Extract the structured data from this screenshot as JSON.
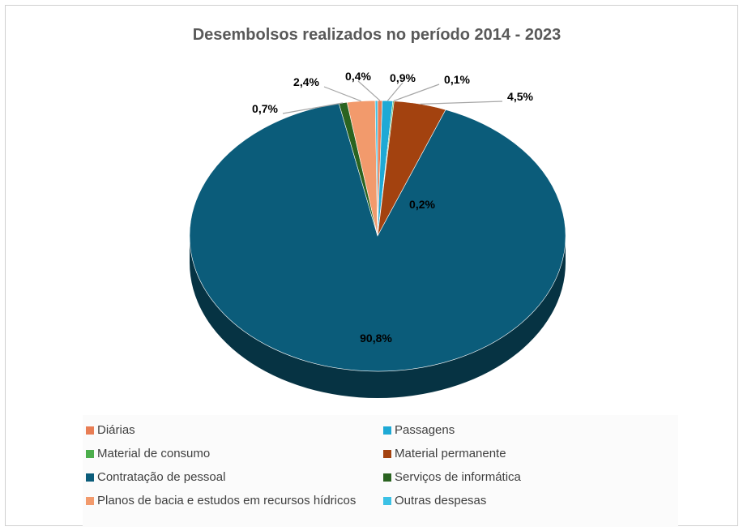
{
  "chart_data": {
    "type": "pie",
    "title": "Desembolsos realizados no período 2014 - 2023",
    "legend_position": "bottom",
    "slices": [
      {
        "name": "Diárias",
        "value": 0.4,
        "label": "0,4%",
        "color": "#e87d54"
      },
      {
        "name": "Passagens",
        "value": 0.9,
        "label": "0,9%",
        "color": "#1ea9d5"
      },
      {
        "name": "Material de consumo",
        "value": 0.1,
        "label": "0,1%",
        "color": "#4cae4c"
      },
      {
        "name": "Material permanente",
        "value": 4.5,
        "label": "4,5%",
        "color": "#a3420f"
      },
      {
        "name": "Contratação de pessoal",
        "value": 90.8,
        "label": "90,8%",
        "color": "#0b5c7a"
      },
      {
        "name": "Serviços de informática",
        "value": 0.7,
        "label": "0,7%",
        "color": "#2a6320"
      },
      {
        "name": "Planos de bacia e estudos em recursos hídricos",
        "value": 2.4,
        "label": "2,4%",
        "color": "#f29a6c"
      },
      {
        "name": "Outras despesas",
        "value": 0.2,
        "label": "0,2%",
        "color": "#3cc1e5"
      }
    ]
  }
}
